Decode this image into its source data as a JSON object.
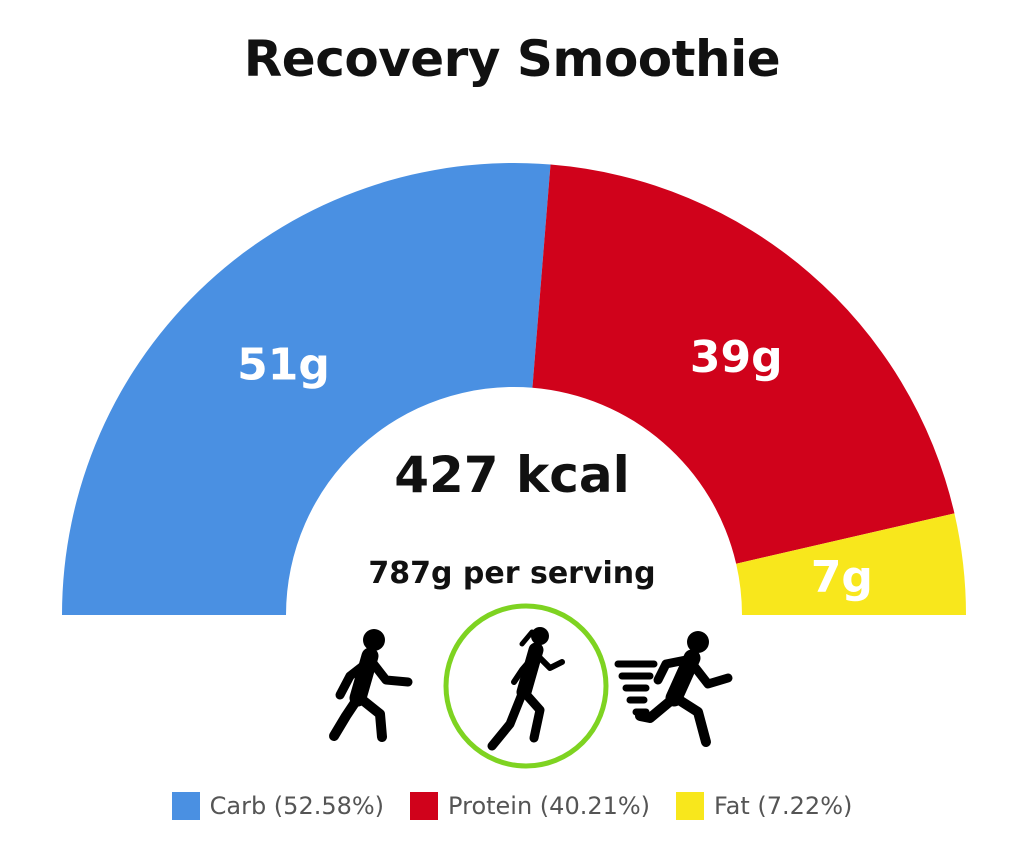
{
  "chart_data": {
    "type": "pie",
    "title": "Recovery Smoothie",
    "center_label": "427 kcal",
    "sub_label": "787g per serving",
    "series": [
      {
        "name": "Carb",
        "value": 51,
        "value_label": "51g",
        "legend": "Carb (52.58%)",
        "percent": 52.58,
        "color": "#4a90e2"
      },
      {
        "name": "Protein",
        "value": 39,
        "value_label": "39g",
        "legend": "Protein (40.21%)",
        "percent": 40.21,
        "color": "#d0021b"
      },
      {
        "name": "Fat",
        "value": 7,
        "value_label": "7g",
        "legend": "Fat (7.22%)",
        "percent": 7.22,
        "color": "#f8e71c"
      }
    ]
  },
  "activity_icons": [
    {
      "name": "walking-icon",
      "selected": false
    },
    {
      "name": "running-icon",
      "selected": true
    },
    {
      "name": "sprinting-icon",
      "selected": false
    }
  ],
  "colors": {
    "selected_ring": "#7ed321",
    "icon": "#000000"
  }
}
